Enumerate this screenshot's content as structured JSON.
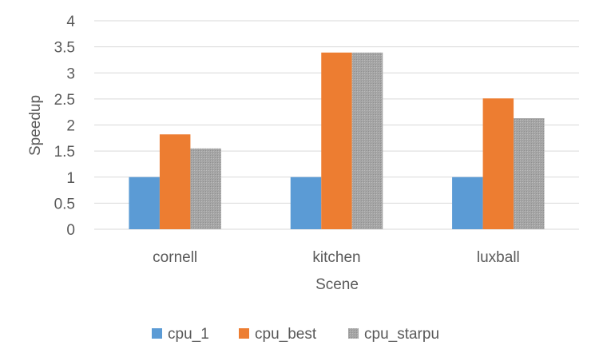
{
  "chart_data": {
    "type": "bar",
    "categories": [
      "cornell",
      "kitchen",
      "luxball"
    ],
    "series": [
      {
        "name": "cpu_1",
        "values": [
          1,
          1,
          1
        ],
        "color": "#5b9bd5"
      },
      {
        "name": "cpu_best",
        "values": [
          1.82,
          3.39,
          2.51
        ],
        "color": "#ed7d31"
      },
      {
        "name": "cpu_starpu",
        "values": [
          1.55,
          3.39,
          2.13
        ],
        "color": "#a5a5a5"
      }
    ],
    "xlabel": "Scene",
    "ylabel": "Speedup",
    "ylim": [
      0,
      4
    ],
    "yticks": [
      "0",
      "0.5",
      "1",
      "1.5",
      "2",
      "2.5",
      "3",
      "3.5",
      "4"
    ],
    "grid": true,
    "legend_position": "bottom"
  }
}
